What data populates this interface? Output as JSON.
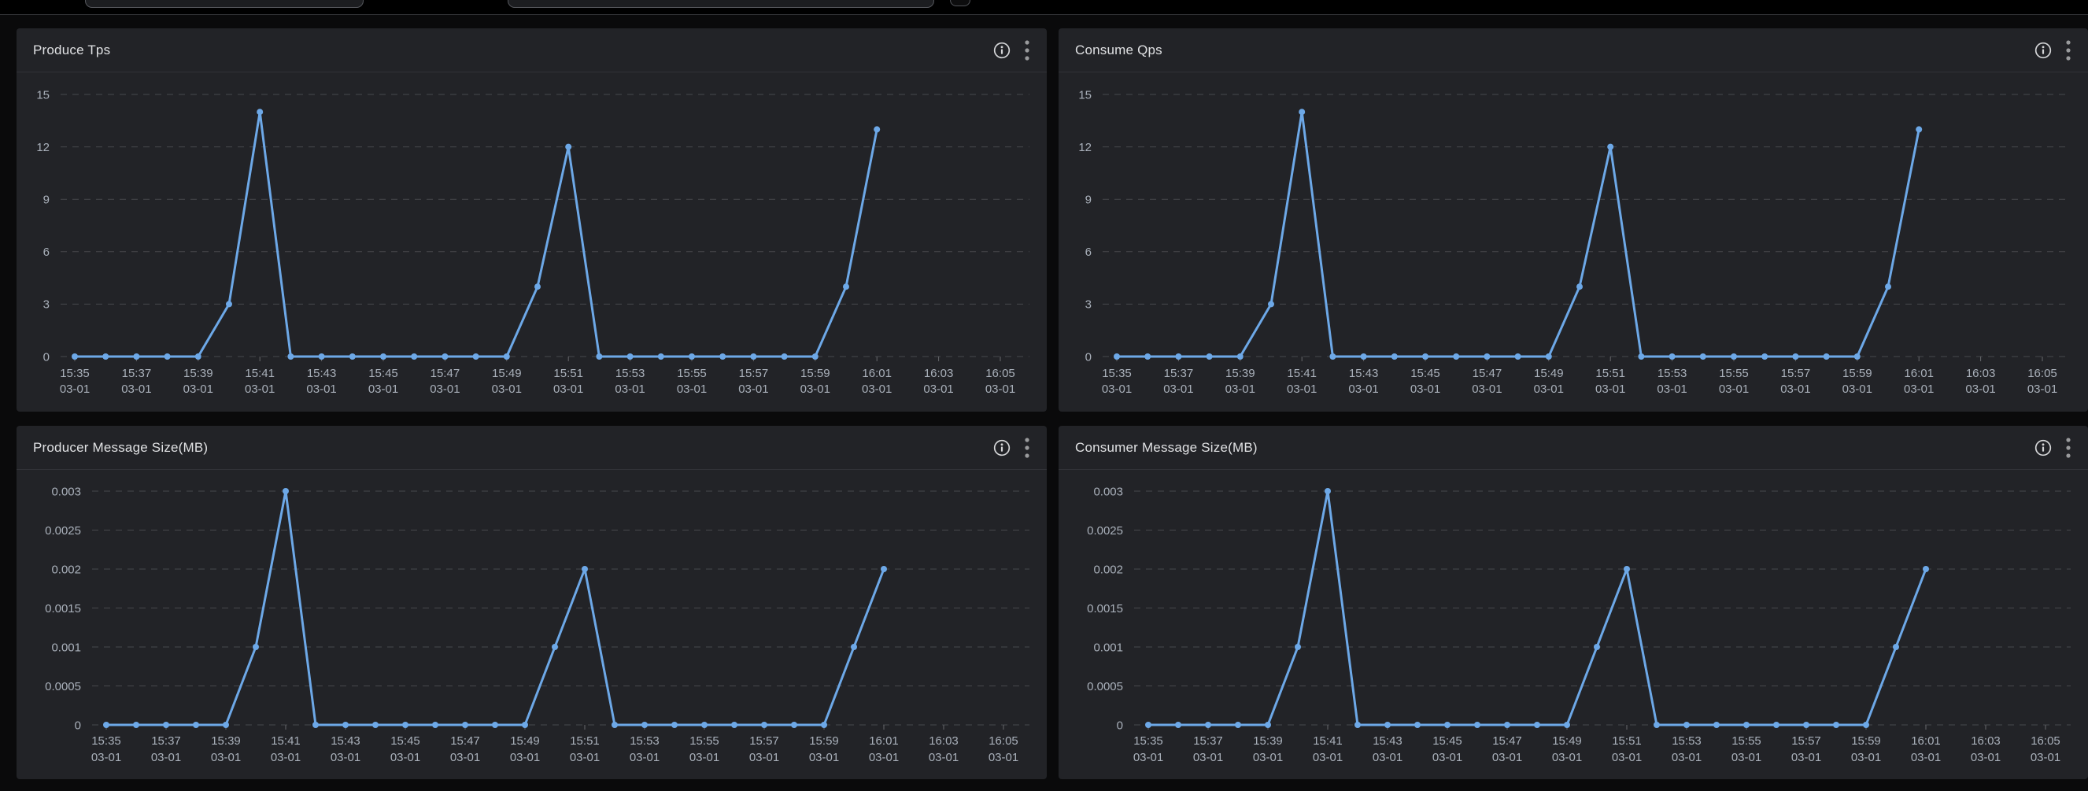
{
  "colors": {
    "line": "#6da8e7",
    "panel_bg": "#222327",
    "page_bg": "#0a0a0b",
    "grid": "#47484c",
    "tick_label": "#a9b0ba",
    "title": "#e0e1e3"
  },
  "panels": [
    {
      "title": "Produce Tps"
    },
    {
      "title": "Consume Qps"
    },
    {
      "title": "Producer Message Size(MB)"
    },
    {
      "title": "Consumer Message Size(MB)"
    }
  ],
  "chart_data": [
    {
      "type": "line",
      "title": "Produce Tps",
      "categories": [
        "15:35",
        "15:36",
        "15:37",
        "15:38",
        "15:39",
        "15:40",
        "15:41",
        "15:42",
        "15:43",
        "15:44",
        "15:45",
        "15:46",
        "15:47",
        "15:48",
        "15:49",
        "15:50",
        "15:51",
        "15:52",
        "15:53",
        "15:54",
        "15:55",
        "15:56",
        "15:57",
        "15:58",
        "15:59",
        "16:00",
        "16:01"
      ],
      "values": [
        0,
        0,
        0,
        0,
        0,
        3,
        14,
        0,
        0,
        0,
        0,
        0,
        0,
        0,
        0,
        4,
        12,
        0,
        0,
        0,
        0,
        0,
        0,
        0,
        0,
        4,
        13
      ],
      "xticks": [
        "15:35",
        "15:37",
        "15:39",
        "15:41",
        "15:43",
        "15:45",
        "15:47",
        "15:49",
        "15:51",
        "15:53",
        "15:55",
        "15:57",
        "15:59",
        "16:01",
        "16:03",
        "16:05"
      ],
      "xtick_date": "03-01",
      "x_axis_end": "16:05",
      "yticks": [
        0,
        3,
        6,
        9,
        12,
        15
      ],
      "ytick_labels": [
        "0",
        "3",
        "6",
        "9",
        "12",
        "15"
      ],
      "ylim": [
        0,
        15
      ],
      "grid": "dashed",
      "legend": "none",
      "line_color": "#6da8e7"
    },
    {
      "type": "line",
      "title": "Consume Qps",
      "categories": [
        "15:35",
        "15:36",
        "15:37",
        "15:38",
        "15:39",
        "15:40",
        "15:41",
        "15:42",
        "15:43",
        "15:44",
        "15:45",
        "15:46",
        "15:47",
        "15:48",
        "15:49",
        "15:50",
        "15:51",
        "15:52",
        "15:53",
        "15:54",
        "15:55",
        "15:56",
        "15:57",
        "15:58",
        "15:59",
        "16:00",
        "16:01"
      ],
      "values": [
        0,
        0,
        0,
        0,
        0,
        3,
        14,
        0,
        0,
        0,
        0,
        0,
        0,
        0,
        0,
        4,
        12,
        0,
        0,
        0,
        0,
        0,
        0,
        0,
        0,
        4,
        13
      ],
      "xticks": [
        "15:35",
        "15:37",
        "15:39",
        "15:41",
        "15:43",
        "15:45",
        "15:47",
        "15:49",
        "15:51",
        "15:53",
        "15:55",
        "15:57",
        "15:59",
        "16:01",
        "16:03",
        "16:05"
      ],
      "xtick_date": "03-01",
      "x_axis_end": "16:05",
      "yticks": [
        0,
        3,
        6,
        9,
        12,
        15
      ],
      "ytick_labels": [
        "0",
        "3",
        "6",
        "9",
        "12",
        "15"
      ],
      "ylim": [
        0,
        15
      ],
      "grid": "dashed",
      "legend": "none",
      "line_color": "#6da8e7"
    },
    {
      "type": "line",
      "title": "Producer Message Size(MB)",
      "categories": [
        "15:35",
        "15:36",
        "15:37",
        "15:38",
        "15:39",
        "15:40",
        "15:41",
        "15:42",
        "15:43",
        "15:44",
        "15:45",
        "15:46",
        "15:47",
        "15:48",
        "15:49",
        "15:50",
        "15:51",
        "15:52",
        "15:53",
        "15:54",
        "15:55",
        "15:56",
        "15:57",
        "15:58",
        "15:59",
        "16:00",
        "16:01"
      ],
      "values": [
        0,
        0,
        0,
        0,
        0,
        0.001,
        0.003,
        0,
        0,
        0,
        0,
        0,
        0,
        0,
        0,
        0.001,
        0.002,
        0,
        0,
        0,
        0,
        0,
        0,
        0,
        0,
        0.001,
        0.002
      ],
      "xticks": [
        "15:35",
        "15:37",
        "15:39",
        "15:41",
        "15:43",
        "15:45",
        "15:47",
        "15:49",
        "15:51",
        "15:53",
        "15:55",
        "15:57",
        "15:59",
        "16:01",
        "16:03",
        "16:05"
      ],
      "xtick_date": "03-01",
      "x_axis_end": "16:05",
      "yticks": [
        0,
        0.0005,
        0.001,
        0.0015,
        0.002,
        0.0025,
        0.003
      ],
      "ytick_labels": [
        "0",
        "0.0005",
        "0.001",
        "0.0015",
        "0.002",
        "0.0025",
        "0.003"
      ],
      "ylim": [
        0,
        0.003
      ],
      "grid": "dashed",
      "legend": "none",
      "line_color": "#6da8e7"
    },
    {
      "type": "line",
      "title": "Consumer Message Size(MB)",
      "categories": [
        "15:35",
        "15:36",
        "15:37",
        "15:38",
        "15:39",
        "15:40",
        "15:41",
        "15:42",
        "15:43",
        "15:44",
        "15:45",
        "15:46",
        "15:47",
        "15:48",
        "15:49",
        "15:50",
        "15:51",
        "15:52",
        "15:53",
        "15:54",
        "15:55",
        "15:56",
        "15:57",
        "15:58",
        "15:59",
        "16:00",
        "16:01"
      ],
      "values": [
        0,
        0,
        0,
        0,
        0,
        0.001,
        0.003,
        0,
        0,
        0,
        0,
        0,
        0,
        0,
        0,
        0.001,
        0.002,
        0,
        0,
        0,
        0,
        0,
        0,
        0,
        0,
        0.001,
        0.002
      ],
      "xticks": [
        "15:35",
        "15:37",
        "15:39",
        "15:41",
        "15:43",
        "15:45",
        "15:47",
        "15:49",
        "15:51",
        "15:53",
        "15:55",
        "15:57",
        "15:59",
        "16:01",
        "16:03",
        "16:05"
      ],
      "xtick_date": "03-01",
      "x_axis_end": "16:05",
      "yticks": [
        0,
        0.0005,
        0.001,
        0.0015,
        0.002,
        0.0025,
        0.003
      ],
      "ytick_labels": [
        "0",
        "0.0005",
        "0.001",
        "0.0015",
        "0.002",
        "0.0025",
        "0.003"
      ],
      "ylim": [
        0,
        0.003
      ],
      "grid": "dashed",
      "legend": "none",
      "line_color": "#6da8e7"
    }
  ]
}
